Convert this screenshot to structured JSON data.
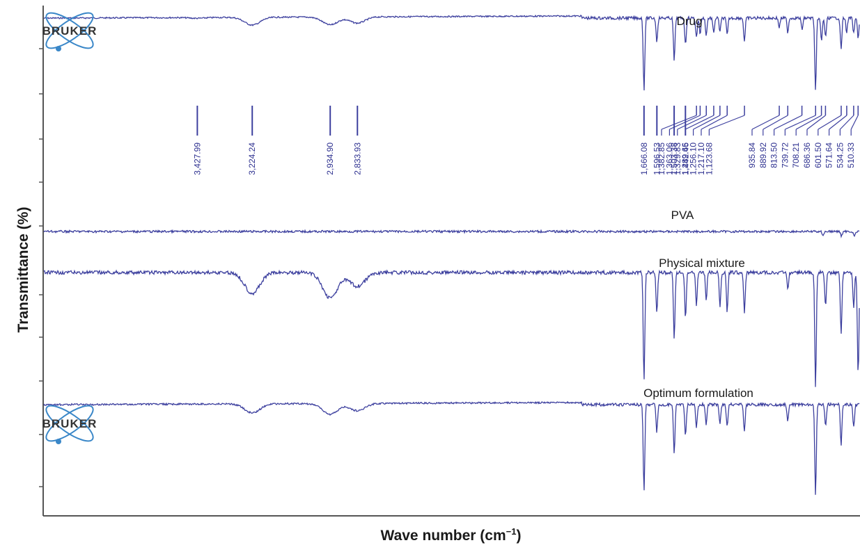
{
  "chart_data": {
    "type": "line",
    "xlabel_base": "Wave number (cm",
    "xlabel_sup": "−1",
    "xlabel_close": ")",
    "ylabel": "Transmittance (%)",
    "x_direction": "decreasing",
    "xlim": [
      4000,
      500
    ],
    "grid": false,
    "colors": {
      "line": "#3c3f9e",
      "peak_label": "#2c2f8f",
      "axis": "#555555",
      "logo": "#3a87c8",
      "logo_text": "#333333"
    },
    "series": [
      {
        "name": "Drug",
        "peaks": [
          {
            "x": 3428,
            "depth": 0.01
          },
          {
            "x": 3224,
            "depth": 0.1
          },
          {
            "x": 2935,
            "depth": 0.1
          },
          {
            "x": 2834,
            "depth": 0.08
          },
          {
            "x": 1666,
            "depth": 0.92
          },
          {
            "x": 1597,
            "depth": 0.3
          },
          {
            "x": 1503,
            "depth": 0.55
          },
          {
            "x": 1442,
            "depth": 0.35
          },
          {
            "x": 1383,
            "depth": 0.25
          },
          {
            "x": 1363,
            "depth": 0.2
          },
          {
            "x": 1330,
            "depth": 0.22
          },
          {
            "x": 1290,
            "depth": 0.2
          },
          {
            "x": 1256,
            "depth": 0.18
          },
          {
            "x": 1217,
            "depth": 0.22
          },
          {
            "x": 1124,
            "depth": 0.3
          },
          {
            "x": 936,
            "depth": 0.12
          },
          {
            "x": 890,
            "depth": 0.18
          },
          {
            "x": 813,
            "depth": 0.15
          },
          {
            "x": 740,
            "depth": 0.95
          },
          {
            "x": 708,
            "depth": 0.3
          },
          {
            "x": 686,
            "depth": 0.25
          },
          {
            "x": 602,
            "depth": 0.4
          },
          {
            "x": 572,
            "depth": 0.18
          },
          {
            "x": 534,
            "depth": 0.2
          },
          {
            "x": 510,
            "depth": 0.25
          }
        ]
      },
      {
        "name": "PVA",
        "peaks": [
          {
            "x": 700,
            "depth": 0.25
          },
          {
            "x": 600,
            "depth": 0.3
          },
          {
            "x": 530,
            "depth": 0.35
          }
        ]
      },
      {
        "name": "Physical mixture",
        "peaks": [
          {
            "x": 3224,
            "depth": 0.18
          },
          {
            "x": 2935,
            "depth": 0.22
          },
          {
            "x": 2834,
            "depth": 0.12
          },
          {
            "x": 1666,
            "depth": 0.95
          },
          {
            "x": 1597,
            "depth": 0.35
          },
          {
            "x": 1503,
            "depth": 0.6
          },
          {
            "x": 1442,
            "depth": 0.4
          },
          {
            "x": 1383,
            "depth": 0.3
          },
          {
            "x": 1330,
            "depth": 0.25
          },
          {
            "x": 1256,
            "depth": 0.3
          },
          {
            "x": 1217,
            "depth": 0.35
          },
          {
            "x": 1124,
            "depth": 0.35
          },
          {
            "x": 890,
            "depth": 0.15
          },
          {
            "x": 740,
            "depth": 1.0
          },
          {
            "x": 686,
            "depth": 0.3
          },
          {
            "x": 602,
            "depth": 0.55
          },
          {
            "x": 534,
            "depth": 0.3
          },
          {
            "x": 510,
            "depth": 0.9
          }
        ]
      },
      {
        "name": "Optimum formulation",
        "peaks": [
          {
            "x": 3224,
            "depth": 0.1
          },
          {
            "x": 2935,
            "depth": 0.12
          },
          {
            "x": 2834,
            "depth": 0.08
          },
          {
            "x": 1666,
            "depth": 0.95
          },
          {
            "x": 1597,
            "depth": 0.3
          },
          {
            "x": 1503,
            "depth": 0.55
          },
          {
            "x": 1442,
            "depth": 0.35
          },
          {
            "x": 1383,
            "depth": 0.25
          },
          {
            "x": 1330,
            "depth": 0.22
          },
          {
            "x": 1256,
            "depth": 0.2
          },
          {
            "x": 1217,
            "depth": 0.25
          },
          {
            "x": 1124,
            "depth": 0.3
          },
          {
            "x": 890,
            "depth": 0.18
          },
          {
            "x": 740,
            "depth": 1.0
          },
          {
            "x": 686,
            "depth": 0.25
          },
          {
            "x": 602,
            "depth": 0.45
          },
          {
            "x": 534,
            "depth": 0.25
          }
        ]
      }
    ],
    "peak_labels": [
      "3,427.99",
      "3,224.24",
      "2,934.90",
      "2,833.93",
      "1,666.08",
      "1,596.53",
      "1,503.38",
      "1,442.45",
      "1,382.85",
      "1,363.06",
      "1,329.83",
      "1,289.66",
      "1,256.10",
      "1,217.10",
      "1,123.68",
      "935.84",
      "889.92",
      "813.50",
      "739.72",
      "708.21",
      "686.36",
      "601.50",
      "571.64",
      "534.25",
      "510.33"
    ],
    "peak_positions": [
      3427.99,
      3224.24,
      2934.9,
      2833.93,
      1666.08,
      1596.53,
      1503.38,
      1442.45,
      1382.85,
      1363.06,
      1329.83,
      1289.66,
      1256.1,
      1217.1,
      1123.68,
      935.84,
      889.92,
      813.5,
      739.72,
      708.21,
      686.36,
      601.5,
      571.64,
      534.25,
      510.33
    ],
    "logos": [
      "BRUKER",
      "BRUKER"
    ]
  }
}
